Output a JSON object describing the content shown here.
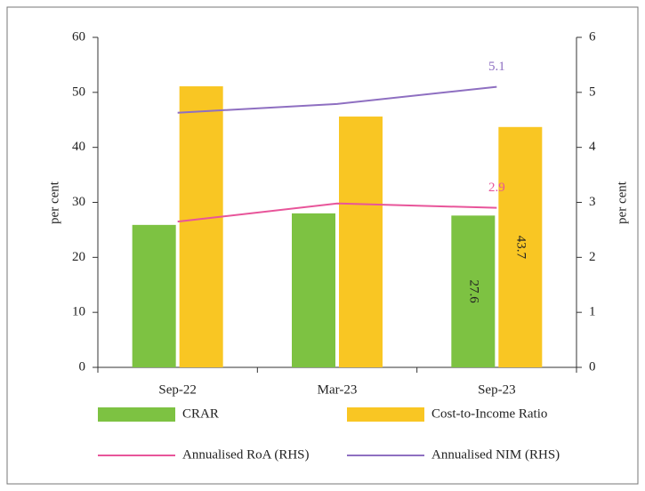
{
  "chart_data": {
    "type": "bar",
    "categories": [
      "Sep-22",
      "Mar-23",
      "Sep-23"
    ],
    "series": [
      {
        "name": "CRAR",
        "type": "bar",
        "color": "#7dc242",
        "values": [
          25.9,
          28,
          27.6
        ]
      },
      {
        "name": "Cost-to-Income Ratio",
        "type": "bar",
        "color": "#f9c623",
        "values": [
          51.1,
          45.6,
          43.7
        ]
      },
      {
        "name": "Annualised RoA (RHS)",
        "type": "line",
        "axis": "y2",
        "color": "#e8559a",
        "values": [
          2.65,
          2.98,
          2.9
        ]
      },
      {
        "name": "Annualised NIM (RHS)",
        "type": "line",
        "axis": "y2",
        "color": "#8e6fc1",
        "values": [
          4.63,
          4.79,
          5.1
        ]
      }
    ],
    "labelled": [
      [
        0,
        2
      ],
      [
        1,
        2
      ],
      [
        2,
        2
      ],
      [
        3,
        2
      ]
    ],
    "ylabel": "per cent",
    "y2label": "per cent",
    "ylim": [
      0,
      60
    ],
    "yticks": [
      0,
      10,
      20,
      30,
      40,
      50,
      60
    ],
    "y2lim": [
      0,
      6
    ],
    "y2ticks": [
      0,
      1,
      2,
      3,
      4,
      5,
      6
    ]
  }
}
